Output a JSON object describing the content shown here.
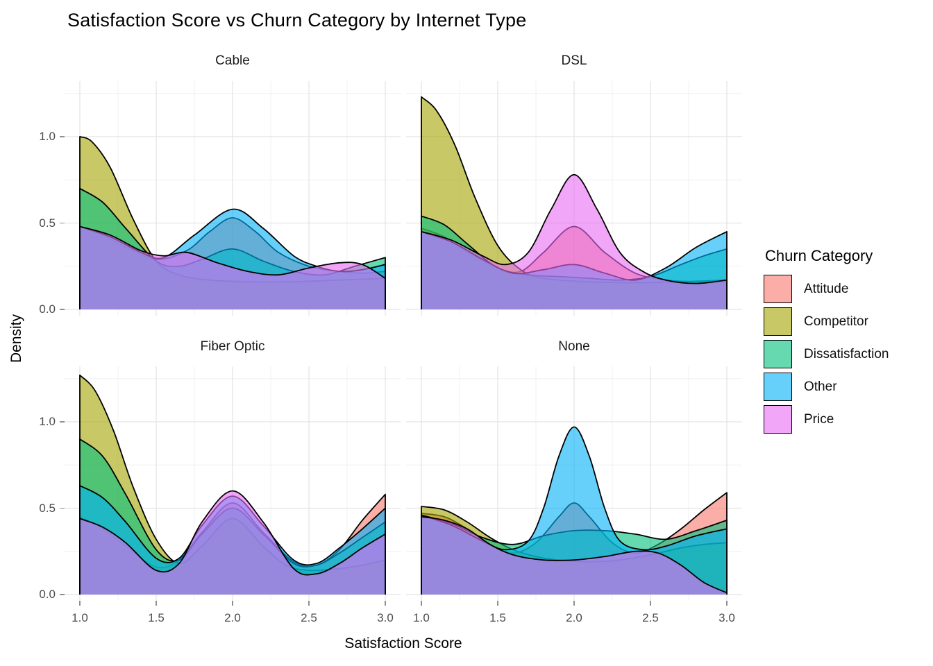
{
  "page": {
    "title": "Satisfaction Score vs Churn Category by Internet Type"
  },
  "legend": {
    "title": "Churn Category",
    "entries": [
      {
        "label": "Attitude",
        "color": "#F8766D"
      },
      {
        "label": "Competitor",
        "color": "#A3A500"
      },
      {
        "label": "Dissatisfaction",
        "color": "#00BF7D"
      },
      {
        "label": "Other",
        "color": "#00B0F6"
      },
      {
        "label": "Price",
        "color": "#E76BF3"
      }
    ]
  },
  "chart_data": {
    "type": "area",
    "subtype": "overlaid-density-facets",
    "title": "Satisfaction Score vs Churn Category by Internet Type",
    "xlabel": "Satisfaction Score",
    "ylabel": "Density",
    "legend_title": "Churn Category",
    "legend_position": "right",
    "grid": true,
    "fill_alpha": 0.6,
    "stroke_color": "#000000",
    "xlim": [
      0.9,
      3.1
    ],
    "ylim": [
      -0.036,
      1.321
    ],
    "x_ticks": {
      "values": [
        1.0,
        1.5,
        2.0,
        2.5,
        3.0
      ],
      "labels": [
        "1.0",
        "1.5",
        "2.0",
        "2.5",
        "3.0"
      ]
    },
    "y_ticks": {
      "values": [
        0.0,
        0.5,
        1.0
      ],
      "labels": [
        "0.0",
        "0.5",
        "1.0"
      ]
    },
    "x_minor": [
      1.25,
      1.75,
      2.25,
      2.75
    ],
    "y_minor": [
      0.25,
      0.75,
      1.25
    ],
    "series_colors": {
      "Attitude": "#F8766D",
      "Competitor": "#A3A500",
      "Dissatisfaction": "#00BF7D",
      "Other": "#00B0F6",
      "Price": "#E76BF3"
    },
    "draw_order": [
      "Attitude",
      "Competitor",
      "Dissatisfaction",
      "Other",
      "Price"
    ],
    "facets": [
      {
        "id": "cable",
        "label": "Cable",
        "series": {
          "Attitude": [
            [
              1.0,
              0.48
            ],
            [
              1.15,
              0.43
            ],
            [
              1.3,
              0.36
            ],
            [
              1.5,
              0.29
            ],
            [
              1.7,
              0.34
            ],
            [
              1.85,
              0.45
            ],
            [
              2.0,
              0.53
            ],
            [
              2.15,
              0.45
            ],
            [
              2.3,
              0.33
            ],
            [
              2.5,
              0.25
            ],
            [
              2.7,
              0.22
            ],
            [
              2.85,
              0.21
            ],
            [
              3.0,
              0.22
            ]
          ],
          "Competitor": [
            [
              1.0,
              1.0
            ],
            [
              1.08,
              0.97
            ],
            [
              1.2,
              0.82
            ],
            [
              1.35,
              0.52
            ],
            [
              1.5,
              0.28
            ],
            [
              1.65,
              0.2
            ],
            [
              1.85,
              0.17
            ],
            [
              2.1,
              0.16
            ],
            [
              2.4,
              0.16
            ],
            [
              2.7,
              0.17
            ],
            [
              3.0,
              0.18
            ]
          ],
          "Dissatisfaction": [
            [
              1.0,
              0.7
            ],
            [
              1.15,
              0.62
            ],
            [
              1.3,
              0.47
            ],
            [
              1.5,
              0.28
            ],
            [
              1.65,
              0.25
            ],
            [
              1.8,
              0.29
            ],
            [
              2.0,
              0.35
            ],
            [
              2.2,
              0.28
            ],
            [
              2.4,
              0.22
            ],
            [
              2.6,
              0.2
            ],
            [
              2.8,
              0.25
            ],
            [
              3.0,
              0.3
            ]
          ],
          "Other": [
            [
              1.0,
              0.48
            ],
            [
              1.2,
              0.42
            ],
            [
              1.4,
              0.33
            ],
            [
              1.55,
              0.3
            ],
            [
              1.75,
              0.43
            ],
            [
              2.0,
              0.58
            ],
            [
              2.2,
              0.47
            ],
            [
              2.4,
              0.31
            ],
            [
              2.55,
              0.25
            ],
            [
              2.7,
              0.22
            ],
            [
              2.85,
              0.23
            ],
            [
              3.0,
              0.26
            ]
          ],
          "Price": [
            [
              1.0,
              0.48
            ],
            [
              1.2,
              0.43
            ],
            [
              1.4,
              0.34
            ],
            [
              1.55,
              0.31
            ],
            [
              1.7,
              0.33
            ],
            [
              1.9,
              0.27
            ],
            [
              2.1,
              0.22
            ],
            [
              2.3,
              0.2
            ],
            [
              2.5,
              0.24
            ],
            [
              2.7,
              0.27
            ],
            [
              2.85,
              0.26
            ],
            [
              3.0,
              0.18
            ]
          ]
        }
      },
      {
        "id": "dsl",
        "label": "DSL",
        "series": {
          "Attitude": [
            [
              1.0,
              0.47
            ],
            [
              1.15,
              0.42
            ],
            [
              1.3,
              0.33
            ],
            [
              1.5,
              0.24
            ],
            [
              1.65,
              0.22
            ],
            [
              1.8,
              0.33
            ],
            [
              2.0,
              0.48
            ],
            [
              2.2,
              0.33
            ],
            [
              2.4,
              0.21
            ],
            [
              2.6,
              0.17
            ],
            [
              2.8,
              0.16
            ],
            [
              3.0,
              0.16
            ]
          ],
          "Competitor": [
            [
              1.0,
              1.23
            ],
            [
              1.1,
              1.15
            ],
            [
              1.22,
              0.95
            ],
            [
              1.35,
              0.65
            ],
            [
              1.5,
              0.37
            ],
            [
              1.65,
              0.23
            ],
            [
              1.8,
              0.18
            ],
            [
              2.1,
              0.16
            ],
            [
              2.4,
              0.155
            ],
            [
              2.7,
              0.16
            ],
            [
              3.0,
              0.17
            ]
          ],
          "Dissatisfaction": [
            [
              1.0,
              0.54
            ],
            [
              1.15,
              0.49
            ],
            [
              1.3,
              0.38
            ],
            [
              1.5,
              0.24
            ],
            [
              1.7,
              0.2
            ],
            [
              1.9,
              0.19
            ],
            [
              2.1,
              0.18
            ],
            [
              2.3,
              0.17
            ],
            [
              2.5,
              0.19
            ],
            [
              2.7,
              0.26
            ],
            [
              2.85,
              0.31
            ],
            [
              3.0,
              0.35
            ]
          ],
          "Other": [
            [
              1.0,
              0.45
            ],
            [
              1.2,
              0.39
            ],
            [
              1.4,
              0.29
            ],
            [
              1.6,
              0.21
            ],
            [
              1.8,
              0.23
            ],
            [
              2.0,
              0.26
            ],
            [
              2.2,
              0.21
            ],
            [
              2.4,
              0.17
            ],
            [
              2.6,
              0.24
            ],
            [
              2.8,
              0.36
            ],
            [
              3.0,
              0.45
            ]
          ],
          "Price": [
            [
              1.0,
              0.45
            ],
            [
              1.2,
              0.4
            ],
            [
              1.4,
              0.31
            ],
            [
              1.55,
              0.26
            ],
            [
              1.7,
              0.33
            ],
            [
              1.85,
              0.58
            ],
            [
              2.0,
              0.78
            ],
            [
              2.15,
              0.58
            ],
            [
              2.3,
              0.33
            ],
            [
              2.45,
              0.22
            ],
            [
              2.6,
              0.17
            ],
            [
              2.8,
              0.15
            ],
            [
              3.0,
              0.17
            ]
          ]
        }
      },
      {
        "id": "fiber",
        "label": "Fiber Optic",
        "series": {
          "Attitude": [
            [
              1.0,
              0.45
            ],
            [
              1.15,
              0.38
            ],
            [
              1.3,
              0.28
            ],
            [
              1.5,
              0.16
            ],
            [
              1.65,
              0.2
            ],
            [
              1.8,
              0.36
            ],
            [
              2.0,
              0.53
            ],
            [
              2.2,
              0.36
            ],
            [
              2.4,
              0.19
            ],
            [
              2.55,
              0.17
            ],
            [
              2.7,
              0.26
            ],
            [
              2.85,
              0.43
            ],
            [
              3.0,
              0.58
            ]
          ],
          "Competitor": [
            [
              1.0,
              1.27
            ],
            [
              1.1,
              1.18
            ],
            [
              1.22,
              0.95
            ],
            [
              1.35,
              0.62
            ],
            [
              1.5,
              0.32
            ],
            [
              1.65,
              0.18
            ],
            [
              1.8,
              0.28
            ],
            [
              2.0,
              0.44
            ],
            [
              2.2,
              0.28
            ],
            [
              2.35,
              0.17
            ],
            [
              2.5,
              0.14
            ],
            [
              2.7,
              0.15
            ],
            [
              2.85,
              0.17
            ],
            [
              3.0,
              0.2
            ]
          ],
          "Dissatisfaction": [
            [
              1.0,
              0.9
            ],
            [
              1.15,
              0.8
            ],
            [
              1.3,
              0.58
            ],
            [
              1.5,
              0.26
            ],
            [
              1.65,
              0.2
            ],
            [
              1.8,
              0.35
            ],
            [
              2.0,
              0.5
            ],
            [
              2.2,
              0.35
            ],
            [
              2.4,
              0.18
            ],
            [
              2.55,
              0.17
            ],
            [
              2.7,
              0.24
            ],
            [
              2.85,
              0.33
            ],
            [
              3.0,
              0.42
            ]
          ],
          "Other": [
            [
              1.0,
              0.63
            ],
            [
              1.15,
              0.56
            ],
            [
              1.3,
              0.42
            ],
            [
              1.5,
              0.21
            ],
            [
              1.65,
              0.21
            ],
            [
              1.8,
              0.4
            ],
            [
              2.0,
              0.57
            ],
            [
              2.2,
              0.4
            ],
            [
              2.4,
              0.2
            ],
            [
              2.55,
              0.18
            ],
            [
              2.7,
              0.27
            ],
            [
              2.85,
              0.38
            ],
            [
              3.0,
              0.5
            ]
          ],
          "Price": [
            [
              1.0,
              0.44
            ],
            [
              1.15,
              0.39
            ],
            [
              1.3,
              0.3
            ],
            [
              1.5,
              0.14
            ],
            [
              1.65,
              0.18
            ],
            [
              1.8,
              0.42
            ],
            [
              2.0,
              0.6
            ],
            [
              2.2,
              0.42
            ],
            [
              2.4,
              0.15
            ],
            [
              2.55,
              0.12
            ],
            [
              2.7,
              0.18
            ],
            [
              2.85,
              0.27
            ],
            [
              3.0,
              0.35
            ]
          ]
        }
      },
      {
        "id": "none",
        "label": "None",
        "series": {
          "Attitude": [
            [
              1.0,
              0.47
            ],
            [
              1.15,
              0.45
            ],
            [
              1.3,
              0.38
            ],
            [
              1.45,
              0.29
            ],
            [
              1.6,
              0.24
            ],
            [
              1.75,
              0.3
            ],
            [
              1.9,
              0.45
            ],
            [
              2.0,
              0.53
            ],
            [
              2.1,
              0.45
            ],
            [
              2.25,
              0.3
            ],
            [
              2.4,
              0.24
            ],
            [
              2.55,
              0.29
            ],
            [
              2.7,
              0.38
            ],
            [
              2.85,
              0.49
            ],
            [
              3.0,
              0.59
            ]
          ],
          "Competitor": [
            [
              1.0,
              0.51
            ],
            [
              1.15,
              0.49
            ],
            [
              1.3,
              0.42
            ],
            [
              1.45,
              0.33
            ],
            [
              1.6,
              0.26
            ],
            [
              1.75,
              0.22
            ],
            [
              1.9,
              0.2
            ],
            [
              2.1,
              0.19
            ],
            [
              2.3,
              0.2
            ],
            [
              2.5,
              0.23
            ],
            [
              2.7,
              0.27
            ],
            [
              2.85,
              0.29
            ],
            [
              3.0,
              0.3
            ]
          ],
          "Dissatisfaction": [
            [
              1.0,
              0.46
            ],
            [
              1.2,
              0.41
            ],
            [
              1.4,
              0.33
            ],
            [
              1.6,
              0.29
            ],
            [
              1.8,
              0.34
            ],
            [
              2.0,
              0.37
            ],
            [
              2.2,
              0.37
            ],
            [
              2.4,
              0.35
            ],
            [
              2.6,
              0.32
            ],
            [
              2.8,
              0.37
            ],
            [
              3.0,
              0.43
            ]
          ],
          "Other": [
            [
              1.0,
              0.46
            ],
            [
              1.2,
              0.4
            ],
            [
              1.4,
              0.31
            ],
            [
              1.55,
              0.26
            ],
            [
              1.7,
              0.31
            ],
            [
              1.8,
              0.5
            ],
            [
              1.9,
              0.8
            ],
            [
              2.0,
              0.97
            ],
            [
              2.1,
              0.8
            ],
            [
              2.2,
              0.5
            ],
            [
              2.3,
              0.31
            ],
            [
              2.45,
              0.26
            ],
            [
              2.6,
              0.28
            ],
            [
              2.8,
              0.34
            ],
            [
              3.0,
              0.38
            ]
          ],
          "Price": [
            [
              1.0,
              0.45
            ],
            [
              1.15,
              0.43
            ],
            [
              1.3,
              0.38
            ],
            [
              1.45,
              0.29
            ],
            [
              1.6,
              0.23
            ],
            [
              1.8,
              0.2
            ],
            [
              2.0,
              0.2
            ],
            [
              2.2,
              0.22
            ],
            [
              2.4,
              0.25
            ],
            [
              2.55,
              0.24
            ],
            [
              2.7,
              0.17
            ],
            [
              2.85,
              0.07
            ],
            [
              3.0,
              0.01
            ]
          ]
        }
      }
    ]
  }
}
